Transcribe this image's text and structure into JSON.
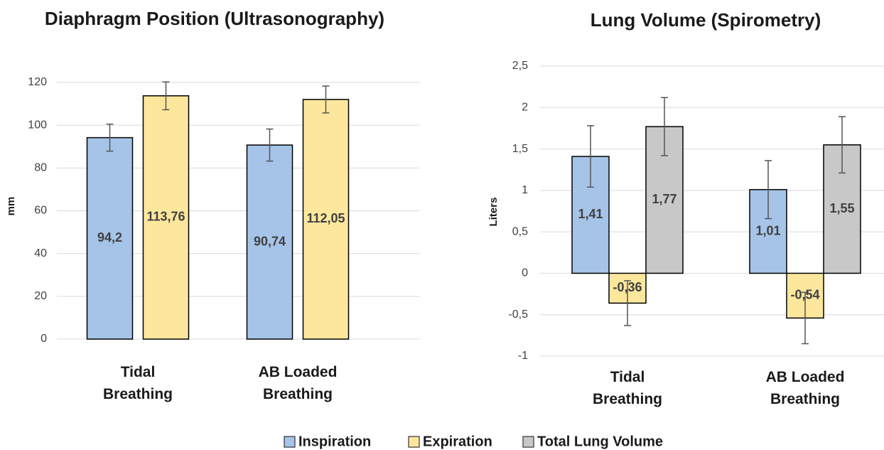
{
  "chart_data": [
    {
      "type": "bar",
      "title": "Diaphragm Position (Ultrasonography)",
      "y_label": "mm",
      "categories": [
        "Tidal Breathing",
        "AB Loaded Breathing"
      ],
      "series": [
        {
          "name": "Inspiration",
          "color": "#a6c4e8",
          "values": [
            94.2,
            90.74
          ],
          "value_labels": [
            "94,2",
            "90,74"
          ],
          "errors": [
            6.3,
            7.5
          ]
        },
        {
          "name": "Expiration",
          "color": "#fde79d",
          "values": [
            113.76,
            112.05
          ],
          "value_labels": [
            "113,76",
            "112,05"
          ],
          "errors": [
            6.5,
            6.3
          ]
        }
      ],
      "ylim": [
        0,
        120
      ],
      "yticks": [
        0,
        20,
        40,
        60,
        80,
        100,
        120
      ],
      "grid": true
    },
    {
      "type": "bar",
      "title": "Lung Volume (Spirometry)",
      "y_label": "Liters",
      "categories": [
        "Tidal Breathing",
        "AB Loaded Breathing"
      ],
      "series": [
        {
          "name": "Inspiration",
          "color": "#a6c4e8",
          "values": [
            1.41,
            1.01
          ],
          "value_labels": [
            "1,41",
            "1,01"
          ],
          "errors": [
            0.37,
            0.35
          ]
        },
        {
          "name": "Expiration",
          "color": "#fde79d",
          "values": [
            -0.36,
            -0.54
          ],
          "value_labels": [
            "-0,36",
            "-0,54"
          ],
          "errors": [
            0.27,
            0.31
          ]
        },
        {
          "name": "Total Lung Volume",
          "color": "#c8c8c8",
          "values": [
            1.77,
            1.55
          ],
          "value_labels": [
            "1,77",
            "1,55"
          ],
          "errors": [
            0.35,
            0.34
          ]
        }
      ],
      "ylim": [
        -1,
        2.5
      ],
      "yticks": [
        -1,
        {
          "value": -0.5,
          "label": "-0,5"
        },
        0,
        {
          "value": 0.5,
          "label": "0,5"
        },
        1,
        {
          "value": 1.5,
          "label": "1,5"
        },
        2,
        {
          "value": 2.5,
          "label": "2,5"
        }
      ],
      "grid": true
    }
  ]
}
